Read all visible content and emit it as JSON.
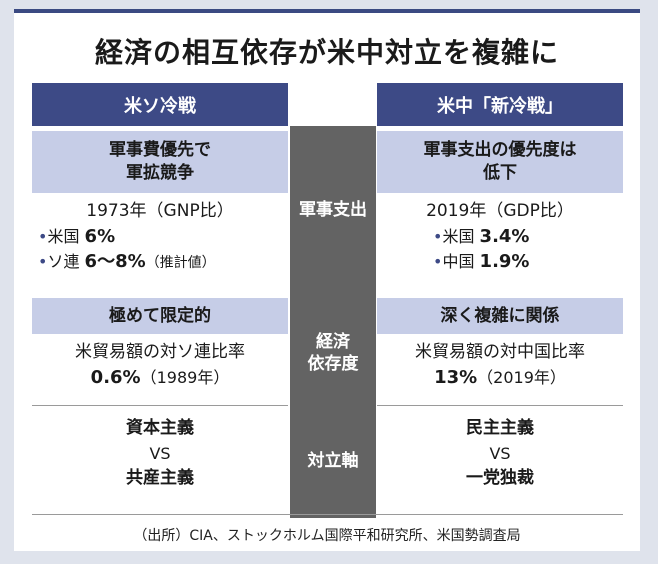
{
  "title": "経済の相互依存が米中対立を複雑に",
  "columns": {
    "left_header": "米ソ冷戦",
    "right_header": "米中「新冷戦」"
  },
  "military": {
    "category": "軍事支出",
    "left_heading_line1": "軍事費優先で",
    "left_heading_line2": "軍拡競争",
    "left_year": "1973年（GNP比）",
    "left_item1_label": "米国",
    "left_item1_value": "6%",
    "left_item2_label": "ソ連",
    "left_item2_value": "6〜8%",
    "left_item2_note": "（推計値）",
    "right_heading_line1": "軍事支出の優先度は",
    "right_heading_line2": "低下",
    "right_year": "2019年（GDP比）",
    "right_item1_label": "米国",
    "right_item1_value": "3.4%",
    "right_item2_label": "中国",
    "right_item2_value": "1.9%"
  },
  "economic": {
    "category_line1": "経済",
    "category_line2": "依存度",
    "left_heading": "極めて限定的",
    "left_desc": "米貿易額の対ソ連比率",
    "left_value": "0.6%",
    "left_year": "（1989年）",
    "right_heading": "深く複雑に関係",
    "right_desc": "米貿易額の対中国比率",
    "right_value": "13%",
    "right_year": "（2019年）"
  },
  "axis": {
    "category": "対立軸",
    "left_top": "資本主義",
    "left_vs": "VS",
    "left_bottom": "共産主義",
    "right_top": "民主主義",
    "right_vs": "VS",
    "right_bottom": "一党独裁"
  },
  "source": "（出所）CIA、ストックホルム国際平和研究所、米国勢調査局",
  "colors": {
    "header_bg": "#3d4a86",
    "band_bg": "#c6cde7",
    "center_col": "#636363",
    "page_bg": "#dfe3ec"
  }
}
